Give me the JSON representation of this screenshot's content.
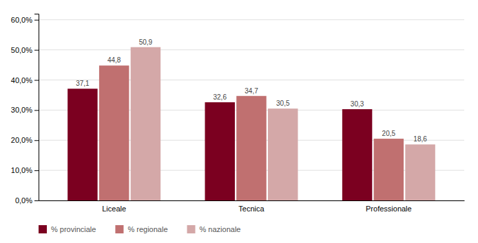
{
  "chart_data": {
    "type": "bar",
    "categories": [
      "Liceale",
      "Tecnica",
      "Professionale"
    ],
    "series": [
      {
        "name": "% provinciale",
        "color": "#7B0020",
        "values": [
          37.1,
          32.6,
          30.3
        ],
        "value_labels": [
          "37,1",
          "32,6",
          "30,3"
        ]
      },
      {
        "name": "% regionale",
        "color": "#C07070",
        "values": [
          44.8,
          34.7,
          20.5
        ],
        "value_labels": [
          "44,8",
          "34,7",
          "20,5"
        ]
      },
      {
        "name": "% nazionale",
        "color": "#D4A8A8",
        "values": [
          50.9,
          30.5,
          18.6
        ],
        "value_labels": [
          "50,9",
          "30,5",
          "18,6"
        ]
      }
    ],
    "ylim": [
      0,
      62
    ],
    "yticks": [
      {
        "value": 0,
        "label": "0,0%"
      },
      {
        "value": 10,
        "label": "10,0%"
      },
      {
        "value": 20,
        "label": "20,0%"
      },
      {
        "value": 30,
        "label": "30,0%"
      },
      {
        "value": 40,
        "label": "40,0%"
      },
      {
        "value": 50,
        "label": "50,0%"
      },
      {
        "value": 60,
        "label": "60,0%"
      }
    ],
    "grid": true,
    "legend": "bottom",
    "data_labels": true
  }
}
